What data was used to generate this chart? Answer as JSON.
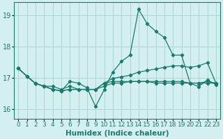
{
  "title": "",
  "xlabel": "Humidex (Indice chaleur)",
  "ylabel": "",
  "background_color": "#d4efef",
  "grid_color": "#aed4d4",
  "line_color": "#1a7a6e",
  "xlim": [
    -0.5,
    23.5
  ],
  "ylim": [
    15.7,
    19.4
  ],
  "yticks": [
    16,
    17,
    18,
    19
  ],
  "xticks": [
    0,
    1,
    2,
    3,
    4,
    5,
    6,
    7,
    8,
    9,
    10,
    11,
    12,
    13,
    14,
    15,
    16,
    17,
    18,
    19,
    20,
    21,
    22,
    23
  ],
  "lines": [
    [
      17.3,
      17.05,
      16.82,
      16.73,
      16.63,
      16.58,
      16.88,
      16.83,
      16.68,
      16.08,
      16.62,
      17.18,
      17.52,
      17.72,
      19.18,
      18.72,
      18.48,
      18.28,
      17.72,
      17.72,
      16.82,
      16.72,
      16.93,
      16.78
    ],
    [
      17.3,
      17.05,
      16.82,
      16.73,
      16.73,
      16.63,
      16.73,
      16.63,
      16.63,
      16.63,
      16.83,
      16.98,
      17.03,
      17.08,
      17.18,
      17.23,
      17.28,
      17.33,
      17.38,
      17.38,
      17.33,
      17.38,
      17.48,
      16.83
    ],
    [
      17.3,
      17.05,
      16.82,
      16.73,
      16.63,
      16.58,
      16.63,
      16.63,
      16.63,
      16.63,
      16.83,
      16.88,
      16.88,
      16.88,
      16.88,
      16.88,
      16.88,
      16.88,
      16.88,
      16.88,
      16.83,
      16.83,
      16.83,
      16.83
    ],
    [
      17.3,
      17.05,
      16.82,
      16.73,
      16.63,
      16.58,
      16.63,
      16.63,
      16.63,
      16.63,
      16.73,
      16.83,
      16.83,
      16.88,
      16.88,
      16.88,
      16.83,
      16.83,
      16.83,
      16.83,
      16.83,
      16.83,
      16.88,
      16.83
    ]
  ],
  "tick_fontsize": 6.5,
  "xlabel_fontsize": 7.5
}
